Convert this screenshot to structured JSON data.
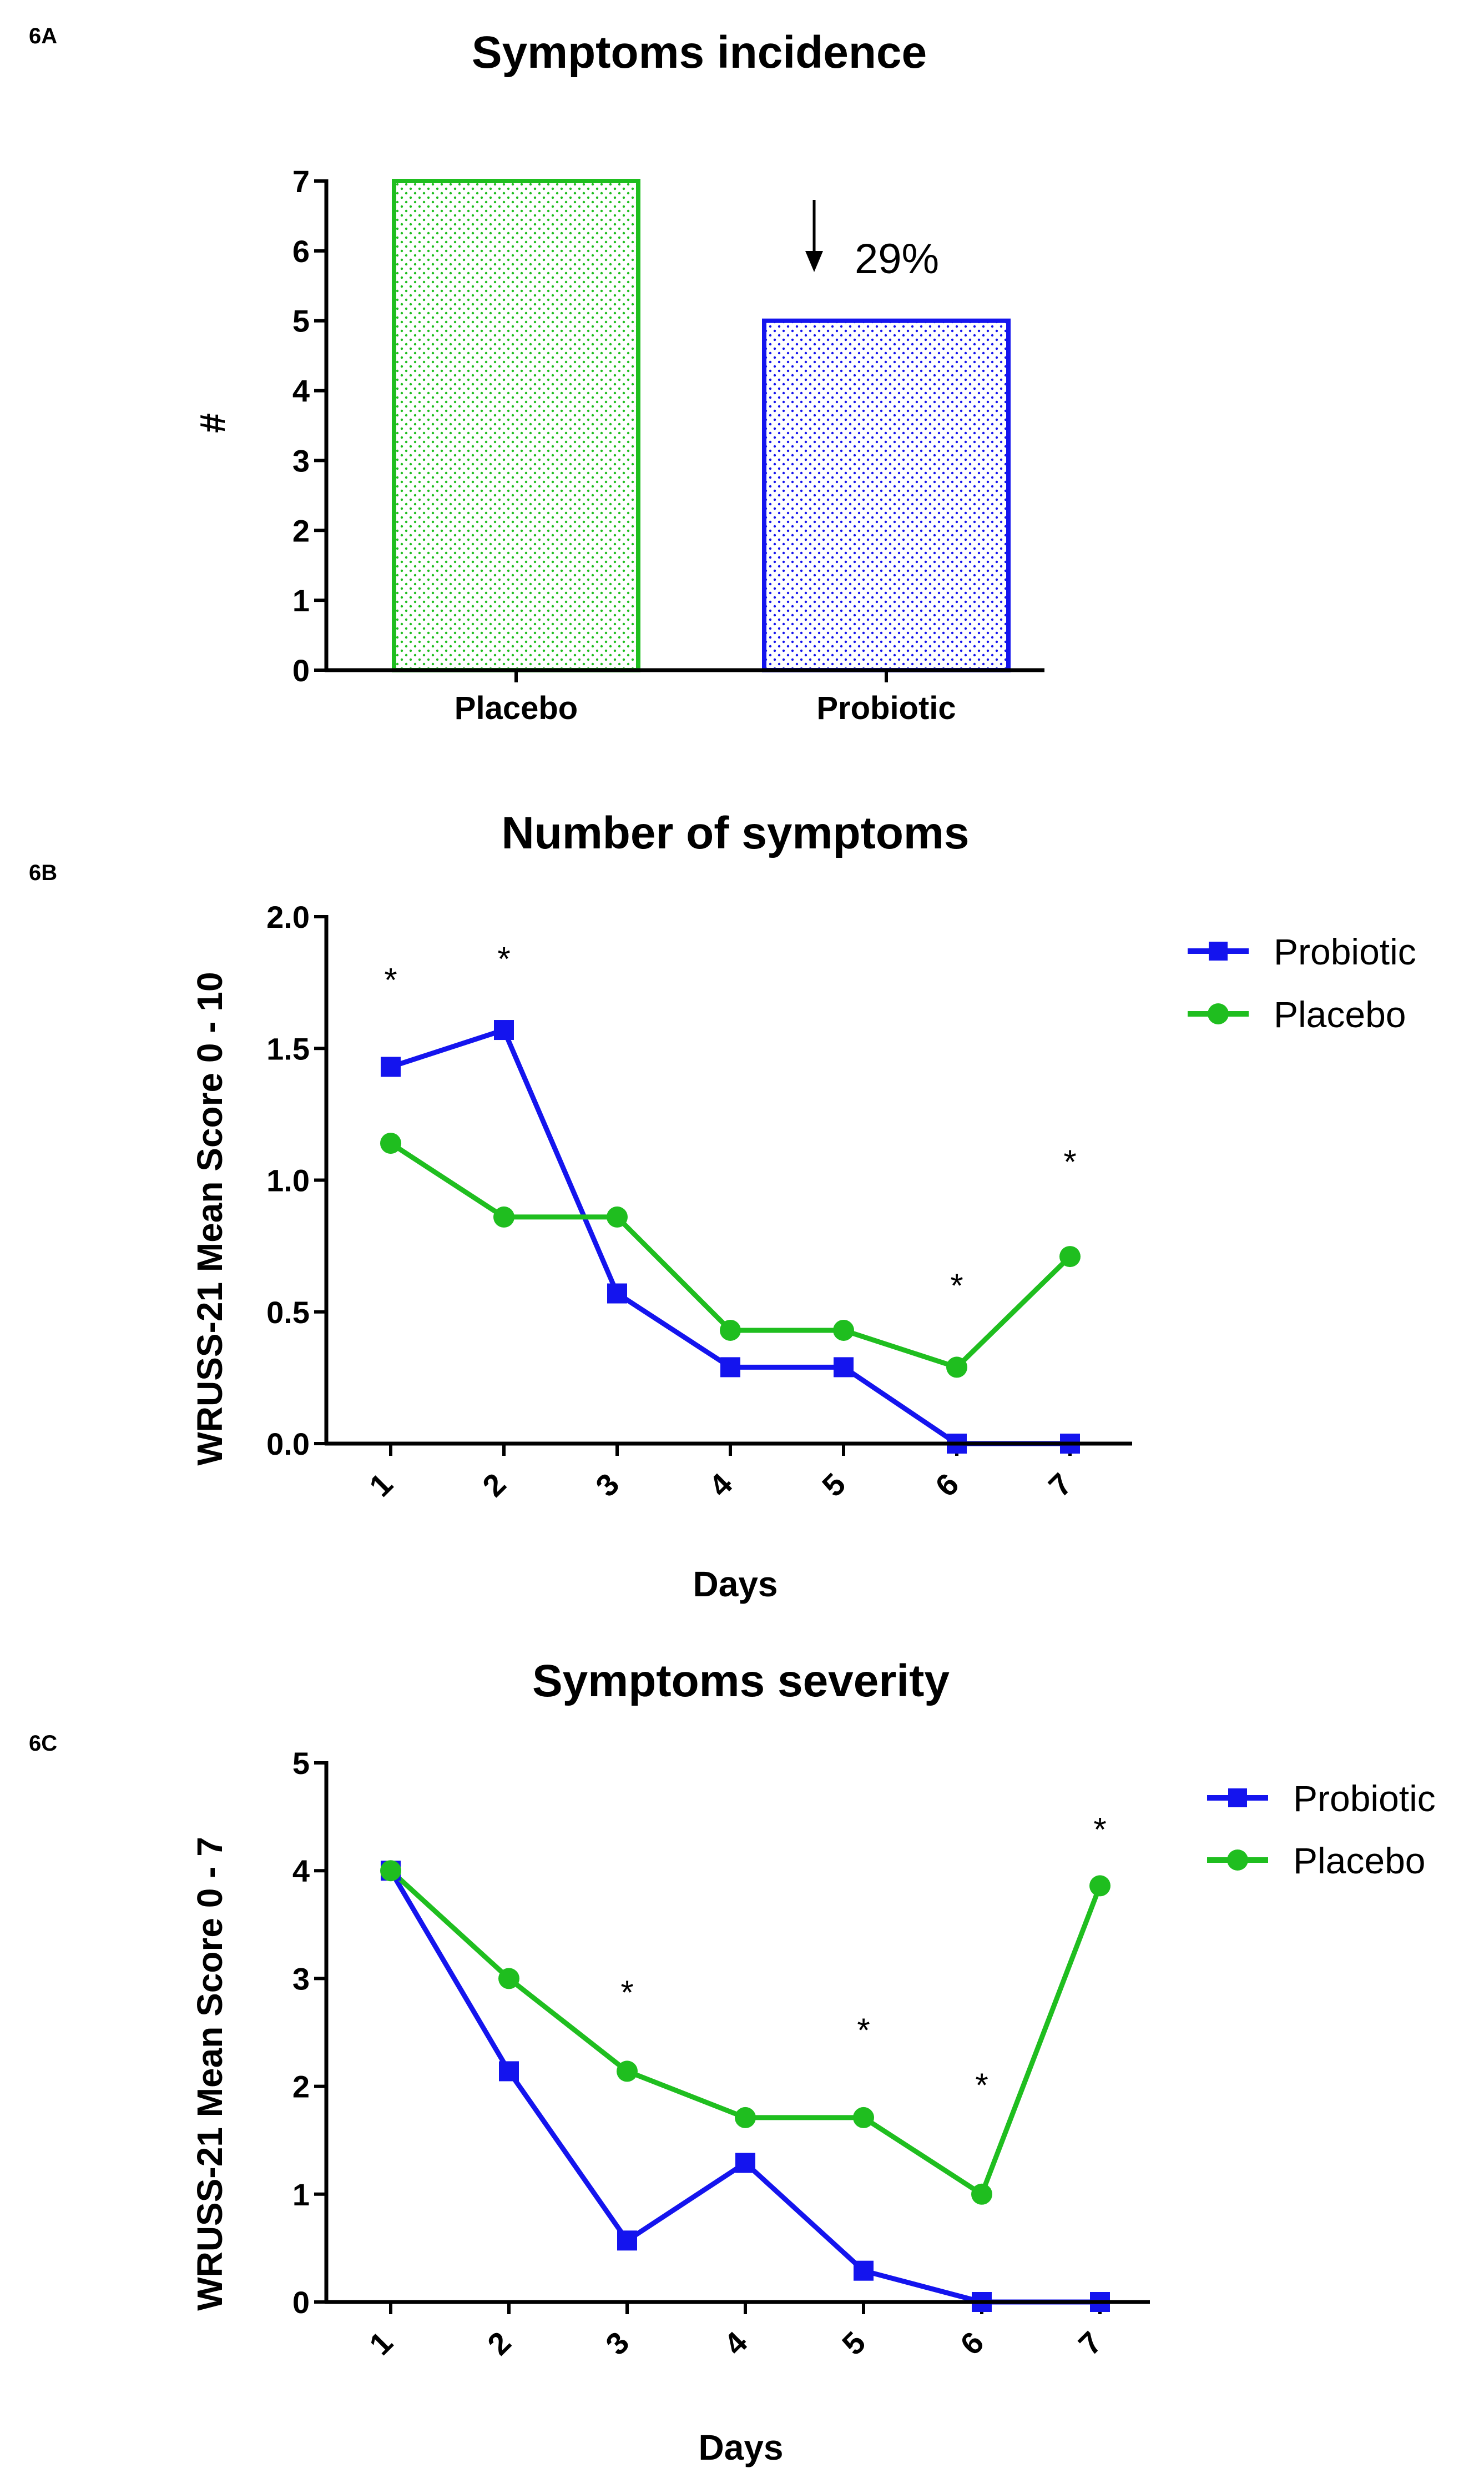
{
  "figure": {
    "panels": [
      "6A",
      "6B",
      "6C"
    ]
  },
  "chart_data": [
    {
      "panel_label": "6A",
      "type": "bar",
      "title": "Symptoms incidence",
      "xlabel": "",
      "ylabel": "#",
      "ylim": [
        0,
        7
      ],
      "yticks": [
        "0",
        "1",
        "2",
        "3",
        "4",
        "5",
        "6",
        "7"
      ],
      "categories": [
        "Placebo",
        "Probiotic"
      ],
      "values": [
        7,
        5
      ],
      "colors": [
        "#1fbe1f",
        "#1414ee"
      ],
      "annotation": {
        "text": "29%",
        "arrow": "down",
        "target_category": "Probiotic"
      }
    },
    {
      "panel_label": "6B",
      "type": "line",
      "title": "Number of symptoms",
      "xlabel": "Days",
      "ylabel": "WRUSS-21 Mean Score 0 - 10",
      "ylim": [
        0,
        2
      ],
      "yticks": [
        "0.0",
        "0.5",
        "1.0",
        "1.5",
        "2.0"
      ],
      "x": [
        "1",
        "2",
        "3",
        "4",
        "5",
        "6",
        "7"
      ],
      "series": [
        {
          "name": "Probiotic",
          "color": "#1414ee",
          "marker": "square",
          "values": [
            1.43,
            1.57,
            0.57,
            0.29,
            0.29,
            0.0,
            0.0
          ]
        },
        {
          "name": "Placebo",
          "color": "#1fbe1f",
          "marker": "circle",
          "values": [
            1.14,
            0.86,
            0.86,
            0.43,
            0.43,
            0.29,
            0.71
          ]
        }
      ],
      "significance": [
        {
          "x": "1",
          "y": 1.78,
          "label": "*"
        },
        {
          "x": "2",
          "y": 1.86,
          "label": "*"
        },
        {
          "x": "6",
          "y": 0.62,
          "label": "*"
        },
        {
          "x": "7",
          "y": 1.09,
          "label": "*"
        }
      ],
      "legend": "top-right"
    },
    {
      "panel_label": "6C",
      "type": "line",
      "title": "Symptoms severity",
      "xlabel": "Days",
      "ylabel": "WRUSS-21 Mean Score 0 - 7",
      "ylim": [
        0,
        5
      ],
      "yticks": [
        "0",
        "1",
        "2",
        "3",
        "4",
        "5"
      ],
      "x": [
        "1",
        "2",
        "3",
        "4",
        "5",
        "6",
        "7"
      ],
      "series": [
        {
          "name": "Probiotic",
          "color": "#1414ee",
          "marker": "square",
          "values": [
            4.0,
            2.14,
            0.57,
            1.29,
            0.29,
            0.0,
            0.0
          ]
        },
        {
          "name": "Placebo",
          "color": "#1fbe1f",
          "marker": "circle",
          "values": [
            4.0,
            3.0,
            2.14,
            1.71,
            1.71,
            1.0,
            3.86
          ]
        }
      ],
      "significance": [
        {
          "x": "3",
          "y": 2.92,
          "label": "*"
        },
        {
          "x": "5",
          "y": 2.57,
          "label": "*"
        },
        {
          "x": "6",
          "y": 2.06,
          "label": "*"
        },
        {
          "x": "7",
          "y": 4.43,
          "label": "*"
        }
      ],
      "legend": "top-right"
    }
  ]
}
